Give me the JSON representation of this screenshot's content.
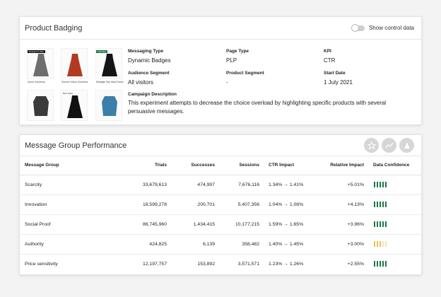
{
  "badging": {
    "title": "Product Badging",
    "toggle_label": "Show control data",
    "products": [
      {
        "tag": "Designer's Pick",
        "tag_color": "#111111",
        "caption": "Azure Sundress",
        "color": "#6e6e6e"
      },
      {
        "tag": "",
        "tag_color": "",
        "caption": "Sunset Yellow Sundress",
        "color": "#b23a22"
      },
      {
        "tag": "Trending",
        "tag_color": "#1a7a45",
        "caption": "Midnight Sky Maxi Dress",
        "color": "#151515"
      },
      {
        "tag": "",
        "tag_color": "",
        "caption": "",
        "color": "#3a3a3a"
      },
      {
        "tag": "Best Seller",
        "tag_color": "#ffffff",
        "caption": "",
        "color": "#111111"
      },
      {
        "tag": "",
        "tag_color": "",
        "caption": "",
        "color": "#3c7fa8"
      }
    ],
    "fields": {
      "messaging_type": {
        "label": "Messaging Type",
        "value": "Dynamic Badges"
      },
      "page_type": {
        "label": "Page Type",
        "value": "PLP"
      },
      "kpi": {
        "label": "KPI",
        "value": "CTR"
      },
      "audience_segment": {
        "label": "Audience Segment",
        "value": "All visitors"
      },
      "product_segment": {
        "label": "Product Segment",
        "value": "-"
      },
      "start_date": {
        "label": "Start Date",
        "value": "1 July 2021"
      },
      "campaign_description": {
        "label": "Campaign Description",
        "value": "This experiment attempts to decrease the choice overload by highlighting specific products with several persuasive messages."
      }
    }
  },
  "performance": {
    "title": "Message Group Performance",
    "icons": [
      "badge-icon",
      "trend-icon",
      "bell-curve-icon"
    ],
    "columns": [
      "Message Group",
      "Trials",
      "Successes",
      "Sessions",
      "CTR Impact",
      "Relative Impact",
      "Data Confidence"
    ],
    "rows": [
      {
        "group": "Scarcity",
        "trials": "33,679,613",
        "successes": "474,997",
        "sessions": "7,676,116",
        "ctr": "1.34% → 1.41%",
        "relative": "+5.01%",
        "confidence": 5,
        "level": "high"
      },
      {
        "group": "Innovation",
        "trials": "18,599,278",
        "successes": "200,701",
        "sessions": "5,407,356",
        "ctr": "1.04% → 1.08%",
        "relative": "+4.13%",
        "confidence": 5,
        "level": "high"
      },
      {
        "group": "Social Proof",
        "trials": "86,745,960",
        "successes": "1,434,415",
        "sessions": "10,177,215",
        "ctr": "1.59% → 1.65%",
        "relative": "+3.96%",
        "confidence": 5,
        "level": "high"
      },
      {
        "group": "Authority",
        "trials": "424,825",
        "successes": "6,139",
        "sessions": "358,482",
        "ctr": "1.40% → 1.45%",
        "relative": "+3.00%",
        "confidence": 3,
        "level": "medium"
      },
      {
        "group": "Price sensitivity",
        "trials": "12,197,757",
        "successes": "153,892",
        "sessions": "3,571,571",
        "ctr": "1.23% → 1.26%",
        "relative": "+2.55%",
        "confidence": 5,
        "level": "high"
      }
    ]
  }
}
